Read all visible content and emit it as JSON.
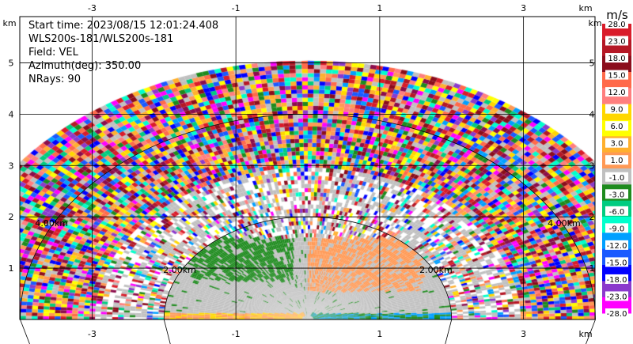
{
  "info": {
    "start_time": "Start time: 2023/08/15 12:01:24.408",
    "instrument": "WLS200s-181/WLS200s-181",
    "field": "Field: VEL",
    "azimuth": "Azimuth(deg): 350.00",
    "nrays": "NRays: 90"
  },
  "chart_data": {
    "type": "heatmap",
    "subtype": "PPI",
    "units": "km",
    "x_ticks": [
      "-3",
      "-1",
      "1",
      "3"
    ],
    "y_ticks": [
      "1",
      "2",
      "3",
      "4",
      "5"
    ],
    "x_tick_values": [
      -3,
      -1,
      1,
      3
    ],
    "y_tick_values": [
      1,
      2,
      3,
      4,
      5
    ],
    "xlim": [
      -4.0,
      4.0
    ],
    "ylim": [
      0,
      5.9
    ],
    "max_range_km": 5.0,
    "range_rings": [
      {
        "radius_km": 2.0,
        "label": "2.00km"
      },
      {
        "radius_km": 4.0,
        "label": "4.00km"
      }
    ],
    "colorbar": {
      "label": "m/s",
      "tick_labels": [
        "28.0",
        "23.0",
        "18.0",
        "15.0",
        "12.0",
        "9.0",
        "6.0",
        "3.0",
        "1.0",
        "-1.0",
        "-3.0",
        "-6.0",
        "-9.0",
        "-12.0",
        "-15.0",
        "-18.0",
        "-23.0",
        "-28.0"
      ],
      "colors": [
        "#d91c2a",
        "#b51826",
        "#8b0d1c",
        "#ff6a4a",
        "#ff7f7f",
        "#ffd700",
        "#ffff00",
        "#ffb02e",
        "#ff9955",
        "#c0c0c0",
        "#1e8b1e",
        "#00cc80",
        "#00ffcc",
        "#00a0ff",
        "#1a5aff",
        "#0000ff",
        "#8b3acc",
        "#ff00ff"
      ]
    }
  }
}
